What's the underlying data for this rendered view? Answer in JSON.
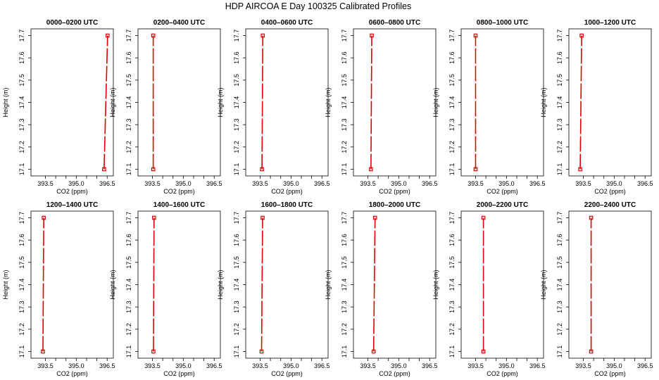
{
  "title": "HDP AIRCOA E  Day 100325  Calibrated Profiles",
  "chart_data": {
    "type": "line",
    "xlabel": "CO2 (ppm)",
    "ylabel": "Height (m)",
    "xlim": [
      392.8,
      396.8
    ],
    "ylim": [
      17.07,
      17.73
    ],
    "xticks": [
      "393.5",
      "394.0",
      "394.5",
      "395.0",
      "395.5",
      "396.0",
      "396.5"
    ],
    "xtick_values": [
      393.5,
      394.0,
      394.5,
      395.0,
      395.5,
      396.0,
      396.5
    ],
    "yticks": [
      "17.1",
      "17.2",
      "17.3",
      "17.4",
      "17.5",
      "17.6",
      "17.7"
    ],
    "ytick_values": [
      17.1,
      17.2,
      17.3,
      17.4,
      17.5,
      17.6,
      17.7
    ],
    "line_color": "#dd0000",
    "panels": [
      {
        "title": "0000–0200 UTC",
        "x": [
          396.35,
          396.52
        ],
        "y": [
          17.1,
          17.7
        ]
      },
      {
        "title": "0200–0400 UTC",
        "x": [
          393.54,
          393.54
        ],
        "y": [
          17.1,
          17.7
        ]
      },
      {
        "title": "0400–0600 UTC",
        "x": [
          393.59,
          393.63
        ],
        "y": [
          17.1,
          17.7
        ]
      },
      {
        "title": "0600–0800 UTC",
        "x": [
          393.65,
          393.69
        ],
        "y": [
          17.1,
          17.7
        ]
      },
      {
        "title": "0800–1000 UTC",
        "x": [
          393.5,
          393.5
        ],
        "y": [
          17.1,
          17.7
        ]
      },
      {
        "title": "1000–1200 UTC",
        "x": [
          393.35,
          393.42
        ],
        "y": [
          17.1,
          17.7
        ]
      },
      {
        "title": "1200–1400 UTC",
        "x": [
          393.38,
          393.42
        ],
        "y": [
          17.1,
          17.7
        ]
      },
      {
        "title": "1400–1600 UTC",
        "x": [
          393.55,
          393.58
        ],
        "y": [
          17.1,
          17.7
        ]
      },
      {
        "title": "1600–1800 UTC",
        "x": [
          393.57,
          393.62
        ],
        "y": [
          17.1,
          17.7
        ]
      },
      {
        "title": "1800–2000 UTC",
        "x": [
          393.78,
          393.85
        ],
        "y": [
          17.1,
          17.7
        ]
      },
      {
        "title": "2000–2200 UTC",
        "x": [
          393.88,
          393.88
        ],
        "y": [
          17.1,
          17.7
        ]
      },
      {
        "title": "2200–2400 UTC",
        "x": [
          393.88,
          393.88
        ],
        "y": [
          17.1,
          17.7
        ]
      }
    ]
  }
}
